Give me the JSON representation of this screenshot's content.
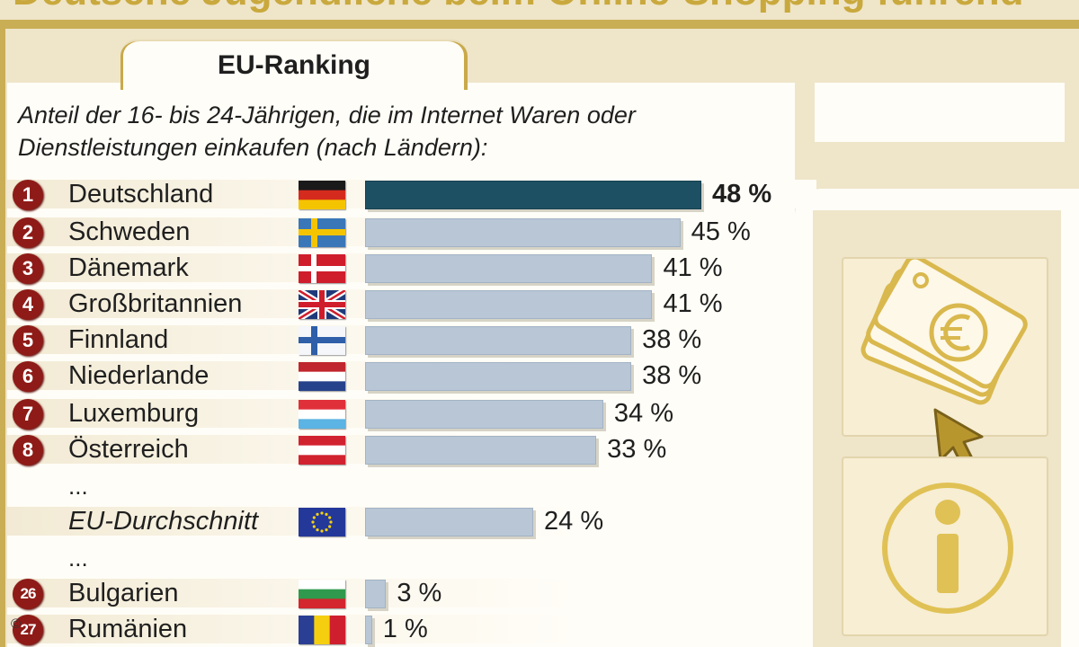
{
  "header": {
    "title": "Deutsche Jugendliche beim Online-Shopping führend"
  },
  "tab": {
    "label": "EU-Ranking"
  },
  "subtitle": "Anteil der 16- bis 24-Jährigen, die im Internet Waren oder Dienstleistungen einkaufen (nach Ländern):",
  "ellipsis": "...",
  "copyright": "©",
  "colors": {
    "highlight_bar": "#1d5062",
    "bar": "#b8c6d6",
    "rank_badge": "#8e1b17",
    "accent": "#c9a93d"
  },
  "icons": [
    "euro-cards-icon",
    "cursor-arrow-icon",
    "info-icon"
  ],
  "chart_data": {
    "type": "bar",
    "orientation": "horizontal",
    "title": "",
    "xlim": [
      0,
      48
    ],
    "rows": [
      {
        "rank": "1",
        "country": "Deutschland",
        "flag": "de",
        "value": 48,
        "label": "48 %",
        "highlight": true
      },
      {
        "rank": "2",
        "country": "Schweden",
        "flag": "se",
        "value": 45,
        "label": "45 %"
      },
      {
        "rank": "3",
        "country": "Dänemark",
        "flag": "dk",
        "value": 41,
        "label": "41 %"
      },
      {
        "rank": "4",
        "country": "Großbritannien",
        "flag": "gb",
        "value": 41,
        "label": "41 %"
      },
      {
        "rank": "5",
        "country": "Finnland",
        "flag": "fi",
        "value": 38,
        "label": "38 %"
      },
      {
        "rank": "6",
        "country": "Niederlande",
        "flag": "nl",
        "value": 38,
        "label": "38 %"
      },
      {
        "rank": "7",
        "country": "Luxemburg",
        "flag": "lu",
        "value": 34,
        "label": "34 %"
      },
      {
        "rank": "8",
        "country": "Österreich",
        "flag": "at",
        "value": 33,
        "label": "33 %"
      },
      {
        "rank": "",
        "country": "EU-Durchschnitt",
        "flag": "eu",
        "value": 24,
        "label": "24 %",
        "average": true
      },
      {
        "rank": "26",
        "country": "Bulgarien",
        "flag": "bg",
        "value": 3,
        "label": "3 %"
      },
      {
        "rank": "27",
        "country": "Rumänien",
        "flag": "ro",
        "value": 1,
        "label": "1 %"
      }
    ]
  }
}
